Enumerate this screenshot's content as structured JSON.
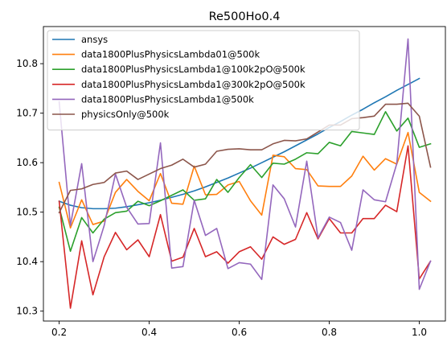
{
  "chart_data": {
    "type": "line",
    "title": "Re500Ho0.4",
    "xlabel": "",
    "ylabel": "",
    "xlim": [
      0.165,
      1.058
    ],
    "ylim": [
      10.28,
      10.875
    ],
    "xticks": [
      0.2,
      0.4,
      0.6,
      0.8,
      1.0
    ],
    "xtick_labels": [
      "0.2",
      "0.4",
      "0.6",
      "0.8",
      "1.0"
    ],
    "yticks": [
      10.3,
      10.4,
      10.5,
      10.6,
      10.7,
      10.8
    ],
    "ytick_labels": [
      "10.3",
      "10.4",
      "10.5",
      "10.6",
      "10.7",
      "10.8"
    ],
    "grid": false,
    "legend_position": "top-left",
    "series": [
      {
        "name": "ansys",
        "color": "#1f77b4",
        "x": [
          0.2,
          0.225,
          0.25,
          0.275,
          0.3,
          0.325,
          0.35,
          0.375,
          0.4,
          0.425,
          0.45,
          0.475,
          0.5,
          0.525,
          0.55,
          0.575,
          0.6,
          0.625,
          0.65,
          0.675,
          0.7,
          0.725,
          0.75,
          0.775,
          0.8,
          0.825,
          0.85,
          0.875,
          0.9,
          0.925,
          0.95,
          0.975,
          1.0
        ],
        "y": [
          10.522,
          10.514,
          10.509,
          10.507,
          10.507,
          10.508,
          10.511,
          10.515,
          10.519,
          10.524,
          10.53,
          10.536,
          10.543,
          10.551,
          10.56,
          10.569,
          10.579,
          10.589,
          10.6,
          10.611,
          10.622,
          10.634,
          10.646,
          10.658,
          10.671,
          10.683,
          10.696,
          10.708,
          10.721,
          10.733,
          10.746,
          10.758,
          10.77
        ]
      },
      {
        "name": "data1800PlusPhysicsLambda01@500k",
        "color": "#ff7f0e",
        "x": [
          0.2,
          0.225,
          0.25,
          0.275,
          0.3,
          0.325,
          0.35,
          0.375,
          0.4,
          0.425,
          0.45,
          0.475,
          0.5,
          0.525,
          0.55,
          0.575,
          0.6,
          0.625,
          0.65,
          0.675,
          0.7,
          0.725,
          0.75,
          0.775,
          0.8,
          0.825,
          0.85,
          0.875,
          0.9,
          0.925,
          0.95,
          0.975,
          1.0,
          1.025
        ],
        "y": [
          10.56,
          10.468,
          10.525,
          10.475,
          10.482,
          10.54,
          10.566,
          10.542,
          10.523,
          10.578,
          10.518,
          10.516,
          10.593,
          10.535,
          10.536,
          10.555,
          10.562,
          10.523,
          10.494,
          10.615,
          10.612,
          10.588,
          10.586,
          10.553,
          10.552,
          10.552,
          10.573,
          10.613,
          10.585,
          10.608,
          10.597,
          10.661,
          10.54,
          10.522
        ]
      },
      {
        "name": "data1800PlusPhysicsLambda1@100k2pO@500k",
        "color": "#2ca02c",
        "x": [
          0.2,
          0.225,
          0.25,
          0.275,
          0.3,
          0.325,
          0.35,
          0.375,
          0.4,
          0.425,
          0.45,
          0.475,
          0.5,
          0.525,
          0.55,
          0.575,
          0.6,
          0.625,
          0.65,
          0.675,
          0.7,
          0.725,
          0.75,
          0.775,
          0.8,
          0.825,
          0.85,
          0.875,
          0.9,
          0.925,
          0.95,
          0.975,
          1.0,
          1.025
        ],
        "y": [
          10.51,
          10.421,
          10.489,
          10.458,
          10.486,
          10.499,
          10.502,
          10.522,
          10.513,
          10.523,
          10.534,
          10.545,
          10.524,
          10.527,
          10.566,
          10.54,
          10.57,
          10.596,
          10.57,
          10.599,
          10.597,
          10.607,
          10.62,
          10.618,
          10.641,
          10.634,
          10.663,
          10.66,
          10.657,
          10.703,
          10.664,
          10.69,
          10.631,
          10.638
        ]
      },
      {
        "name": "data1800PlusPhysicsLambda1@300k2pO@500k",
        "color": "#d62728",
        "x": [
          0.2,
          0.225,
          0.25,
          0.275,
          0.3,
          0.325,
          0.35,
          0.375,
          0.4,
          0.425,
          0.45,
          0.475,
          0.5,
          0.525,
          0.55,
          0.575,
          0.6,
          0.625,
          0.65,
          0.675,
          0.7,
          0.725,
          0.75,
          0.775,
          0.8,
          0.825,
          0.85,
          0.875,
          0.9,
          0.925,
          0.95,
          0.975,
          1.0,
          1.025
        ],
        "y": [
          10.522,
          10.306,
          10.442,
          10.333,
          10.41,
          10.459,
          10.424,
          10.444,
          10.41,
          10.495,
          10.401,
          10.409,
          10.467,
          10.41,
          10.42,
          10.397,
          10.42,
          10.43,
          10.405,
          10.45,
          10.435,
          10.445,
          10.499,
          10.446,
          10.487,
          10.458,
          10.458,
          10.487,
          10.487,
          10.514,
          10.501,
          10.634,
          10.365,
          10.401
        ]
      },
      {
        "name": "data1800PlusPhysicsLambda1@500k",
        "color": "#9467bd",
        "x": [
          0.2,
          0.225,
          0.25,
          0.275,
          0.3,
          0.325,
          0.35,
          0.375,
          0.4,
          0.425,
          0.45,
          0.475,
          0.5,
          0.525,
          0.55,
          0.575,
          0.6,
          0.625,
          0.65,
          0.675,
          0.7,
          0.725,
          0.75,
          0.775,
          0.8,
          0.825,
          0.85,
          0.875,
          0.9,
          0.925,
          0.95,
          0.975,
          1.0,
          1.025
        ],
        "y": [
          10.723,
          10.473,
          10.598,
          10.4,
          10.473,
          10.577,
          10.51,
          10.476,
          10.477,
          10.64,
          10.387,
          10.39,
          10.524,
          10.453,
          10.467,
          10.386,
          10.398,
          10.395,
          10.364,
          10.555,
          10.527,
          10.47,
          10.603,
          10.448,
          10.49,
          10.479,
          10.423,
          10.545,
          10.525,
          10.521,
          10.598,
          10.85,
          10.344,
          10.401
        ]
      },
      {
        "name": "physicsOnly@500k",
        "color": "#8c564b",
        "x": [
          0.2,
          0.225,
          0.25,
          0.275,
          0.3,
          0.325,
          0.35,
          0.375,
          0.4,
          0.425,
          0.45,
          0.475,
          0.5,
          0.525,
          0.55,
          0.575,
          0.6,
          0.625,
          0.65,
          0.675,
          0.7,
          0.725,
          0.75,
          0.775,
          0.8,
          0.825,
          0.85,
          0.875,
          0.9,
          0.925,
          0.95,
          0.975,
          1.0,
          1.025
        ],
        "y": [
          10.499,
          10.544,
          10.547,
          10.556,
          10.56,
          10.579,
          10.583,
          10.566,
          10.577,
          10.588,
          10.595,
          10.607,
          10.591,
          10.597,
          10.623,
          10.627,
          10.628,
          10.626,
          10.626,
          10.638,
          10.645,
          10.644,
          10.648,
          10.662,
          10.676,
          10.676,
          10.689,
          10.691,
          10.694,
          10.718,
          10.718,
          10.72,
          10.694,
          10.591
        ]
      }
    ]
  }
}
